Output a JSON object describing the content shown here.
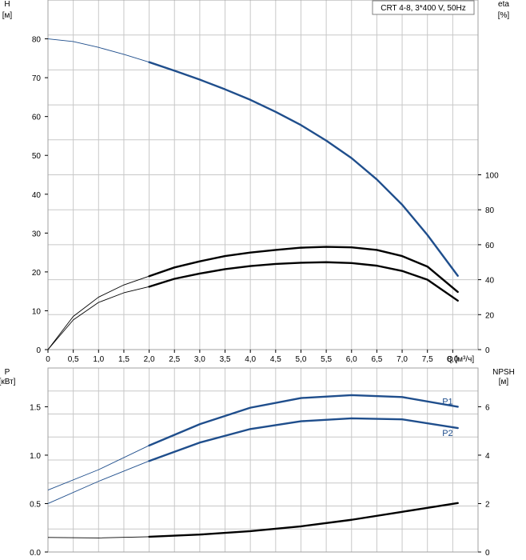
{
  "legend_text": "CRT 4-8, 3*400 V, 50Hz",
  "colors": {
    "blue": "#1f4e8c",
    "black": "#000000",
    "grid": "#c8c8c8",
    "frame": "#a0a0a0"
  },
  "chart_data": [
    {
      "type": "line",
      "xlabel": "Q [м³/ч]",
      "xlim": [
        0,
        8.5
      ],
      "x_ticks": [
        "0",
        "0,5",
        "1,0",
        "1,5",
        "2,0",
        "2,5",
        "3,0",
        "3,5",
        "4,0",
        "4,5",
        "5,0",
        "5,5",
        "6,0",
        "6,5",
        "7,0",
        "7,5",
        "8,0"
      ],
      "y_left": {
        "label": [
          "H",
          "[м]"
        ],
        "lim": [
          0,
          90
        ],
        "ticks": [
          "0",
          "10",
          "20",
          "30",
          "40",
          "50",
          "60",
          "70",
          "80"
        ]
      },
      "y_right": {
        "label": [
          "eta",
          "[%]"
        ],
        "lim": [
          0,
          200
        ],
        "ticks": [
          "0",
          "20",
          "40",
          "60",
          "80",
          "100"
        ]
      },
      "series": [
        {
          "axis": "left",
          "color": "#1f4e8c",
          "thick_from": 2.0,
          "x": [
            0,
            0.5,
            1.0,
            1.5,
            2.0,
            2.5,
            3.0,
            3.5,
            4.0,
            4.5,
            5.0,
            5.5,
            6.0,
            6.5,
            7.0,
            7.5,
            8.1
          ],
          "y": [
            80,
            79.3,
            77.8,
            76.0,
            74,
            71.8,
            69.5,
            67.0,
            64.3,
            61.2,
            57.8,
            53.8,
            49.3,
            43.8,
            37.3,
            29.5,
            19
          ]
        },
        {
          "axis": "right",
          "color": "#000000",
          "thick_from": 2.0,
          "x": [
            0,
            0.5,
            1.0,
            1.5,
            2.0,
            2.5,
            3.0,
            3.5,
            4.0,
            4.5,
            5.0,
            5.5,
            6.0,
            6.5,
            7.0,
            7.5,
            8.1
          ],
          "y": [
            0,
            19,
            30,
            37,
            42,
            47,
            50.5,
            53.5,
            55.5,
            57,
            58.3,
            58.8,
            58.5,
            57,
            53.5,
            47.5,
            33
          ]
        },
        {
          "axis": "right",
          "color": "#000000",
          "thick_from": 2.0,
          "x": [
            0,
            0.5,
            1.0,
            1.5,
            2.0,
            2.5,
            3.0,
            3.5,
            4.0,
            4.5,
            5.0,
            5.5,
            6.0,
            6.5,
            7.0,
            7.5,
            8.1
          ],
          "y": [
            0,
            17,
            27,
            32.5,
            36,
            40.5,
            43.5,
            46,
            47.8,
            49,
            49.7,
            50,
            49.5,
            48,
            45,
            40,
            28
          ]
        }
      ]
    },
    {
      "type": "line",
      "xlim": [
        0,
        8.5
      ],
      "y_left": {
        "label": [
          "P",
          "[кВт]"
        ],
        "lim": [
          0,
          1.9
        ],
        "ticks": [
          "0.0",
          "0.5",
          "1.0",
          "1.5"
        ]
      },
      "y_right": {
        "label": [
          "NPSH",
          "[м]"
        ],
        "lim": [
          0,
          7.6
        ],
        "ticks": [
          "0",
          "2",
          "4",
          "6"
        ]
      },
      "series": [
        {
          "name": "P1",
          "axis": "left",
          "color": "#1f4e8c",
          "thick_from": 2.0,
          "x": [
            0,
            1.0,
            2.0,
            3.0,
            4.0,
            5.0,
            6.0,
            7.0,
            8.1
          ],
          "y": [
            0.64,
            0.85,
            1.1,
            1.32,
            1.49,
            1.59,
            1.62,
            1.6,
            1.5
          ]
        },
        {
          "name": "P2",
          "axis": "left",
          "color": "#1f4e8c",
          "thick_from": 2.0,
          "x": [
            0,
            1.0,
            2.0,
            3.0,
            4.0,
            5.0,
            6.0,
            7.0,
            8.1
          ],
          "y": [
            0.5,
            0.73,
            0.94,
            1.13,
            1.27,
            1.35,
            1.38,
            1.37,
            1.28
          ]
        },
        {
          "axis": "right",
          "color": "#000000",
          "thick_from": 2.0,
          "x": [
            0,
            1.0,
            2.0,
            3.0,
            4.0,
            5.0,
            6.0,
            7.0,
            8.1
          ],
          "y": [
            0.6,
            0.58,
            0.63,
            0.72,
            0.86,
            1.06,
            1.33,
            1.66,
            2.02
          ]
        }
      ]
    }
  ]
}
